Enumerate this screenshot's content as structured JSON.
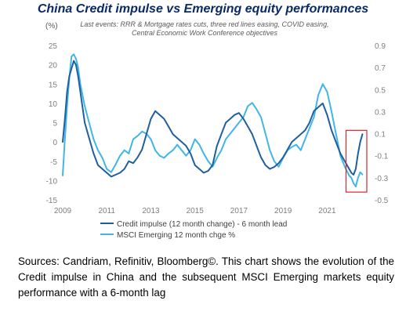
{
  "chart_data": {
    "type": "line",
    "title": "China Credit impulse vs Emerging equity performances",
    "subtitle": "Last events: RRR & Mortgage rates cuts, three red lines easing, COVID easing, Central Economic Work Conference objectives",
    "left_axis_unit": "(%)",
    "x_ticks": [
      "2009",
      "2011",
      "2013",
      "2015",
      "2017",
      "2019",
      "2021"
    ],
    "xlim": [
      2009.0,
      2022.8
    ],
    "left_ticks": [
      "25",
      "20",
      "15",
      "10",
      "5",
      "0",
      "-5",
      "-10",
      "-15"
    ],
    "ylim_left": [
      -15,
      25
    ],
    "right_ticks": [
      "0.9",
      "0.7",
      "0.5",
      "0.3",
      "0.1",
      "-0.1",
      "-0.3",
      "-0.5"
    ],
    "ylim_right": [
      -0.5,
      0.9
    ],
    "grid": false,
    "legend_position": "bottom",
    "highlight_box": {
      "x_range": [
        2022.0,
        2022.8
      ],
      "y_range_left": [
        -13,
        3
      ],
      "color": "#d9262a"
    },
    "series": [
      {
        "name": "Credit impulse (12 month change) - 6 month lead",
        "axis": "left",
        "color": "#1f5f9e",
        "x": [
          2009.0,
          2009.1,
          2009.2,
          2009.3,
          2009.4,
          2009.5,
          2009.6,
          2009.7,
          2009.8,
          2009.9,
          2010.0,
          2010.2,
          2010.4,
          2010.6,
          2010.8,
          2011.0,
          2011.2,
          2011.4,
          2011.6,
          2011.8,
          2012.0,
          2012.2,
          2012.4,
          2012.6,
          2012.8,
          2013.0,
          2013.2,
          2013.4,
          2013.6,
          2013.8,
          2014.0,
          2014.2,
          2014.4,
          2014.6,
          2014.8,
          2015.0,
          2015.2,
          2015.4,
          2015.6,
          2015.8,
          2016.0,
          2016.2,
          2016.4,
          2016.6,
          2016.8,
          2017.0,
          2017.2,
          2017.4,
          2017.6,
          2017.8,
          2018.0,
          2018.2,
          2018.4,
          2018.6,
          2018.8,
          2019.0,
          2019.2,
          2019.4,
          2019.6,
          2019.8,
          2020.0,
          2020.2,
          2020.4,
          2020.6,
          2020.8,
          2021.0,
          2021.2,
          2021.4,
          2021.6,
          2021.8,
          2022.0,
          2022.1,
          2022.2,
          2022.3,
          2022.4,
          2022.5,
          2022.6
        ],
        "values": [
          0,
          6,
          13,
          17,
          19,
          21,
          20,
          17,
          13,
          9,
          5,
          1,
          -3,
          -6,
          -7,
          -8,
          -9,
          -8.5,
          -8,
          -7,
          -5,
          -5.5,
          -4,
          -2,
          2,
          6,
          8,
          7,
          6,
          4,
          2,
          1,
          0,
          -1,
          -3,
          -6,
          -7,
          -8,
          -7.5,
          -6,
          -1,
          2,
          5,
          6,
          7,
          7.5,
          6,
          4,
          2,
          -1,
          -4,
          -6,
          -7,
          -6.5,
          -5.5,
          -4,
          -2,
          0,
          1,
          2,
          3,
          5,
          8,
          9,
          10,
          7,
          3,
          0,
          -3,
          -5,
          -7,
          -8,
          -8.5,
          -7,
          -3,
          0,
          2
        ]
      },
      {
        "name": "MSCI Emerging 12 month chge %",
        "axis": "right",
        "color": "#41b6e6",
        "x": [
          2009.0,
          2009.1,
          2009.2,
          2009.3,
          2009.4,
          2009.5,
          2009.6,
          2009.7,
          2009.8,
          2009.9,
          2010.0,
          2010.2,
          2010.4,
          2010.6,
          2010.8,
          2011.0,
          2011.2,
          2011.4,
          2011.6,
          2011.8,
          2012.0,
          2012.2,
          2012.4,
          2012.6,
          2012.8,
          2013.0,
          2013.2,
          2013.4,
          2013.6,
          2013.8,
          2014.0,
          2014.2,
          2014.4,
          2014.6,
          2014.8,
          2015.0,
          2015.2,
          2015.4,
          2015.6,
          2015.8,
          2016.0,
          2016.2,
          2016.4,
          2016.6,
          2016.8,
          2017.0,
          2017.2,
          2017.4,
          2017.6,
          2017.8,
          2018.0,
          2018.2,
          2018.4,
          2018.6,
          2018.8,
          2019.0,
          2019.2,
          2019.4,
          2019.6,
          2019.8,
          2020.0,
          2020.2,
          2020.4,
          2020.6,
          2020.8,
          2021.0,
          2021.2,
          2021.4,
          2021.6,
          2021.8,
          2022.0,
          2022.1,
          2022.2,
          2022.3,
          2022.4,
          2022.5,
          2022.6
        ],
        "values": [
          -0.28,
          0.05,
          0.35,
          0.6,
          0.8,
          0.82,
          0.78,
          0.7,
          0.55,
          0.45,
          0.35,
          0.2,
          0.05,
          -0.05,
          -0.12,
          -0.22,
          -0.25,
          -0.18,
          -0.1,
          -0.05,
          -0.08,
          0.05,
          0.08,
          0.12,
          0.1,
          0.05,
          -0.05,
          -0.1,
          -0.12,
          -0.08,
          -0.05,
          0.0,
          -0.05,
          -0.1,
          -0.05,
          0.05,
          0.0,
          -0.08,
          -0.15,
          -0.2,
          -0.12,
          -0.05,
          0.05,
          0.1,
          0.15,
          0.2,
          0.25,
          0.35,
          0.38,
          0.32,
          0.25,
          0.1,
          -0.05,
          -0.15,
          -0.2,
          -0.12,
          -0.05,
          -0.02,
          0.0,
          -0.05,
          0.05,
          0.15,
          0.25,
          0.45,
          0.55,
          0.48,
          0.3,
          0.1,
          -0.1,
          -0.2,
          -0.28,
          -0.3,
          -0.35,
          -0.38,
          -0.3,
          -0.25,
          -0.27
        ]
      }
    ]
  },
  "caption": "Sources: Candriam, Refinitiv, Bloomberg©. This chart shows the evolution of the Credit impulse in China and the subsequent MSCI Emerging markets equity performance with a 6-month lag"
}
